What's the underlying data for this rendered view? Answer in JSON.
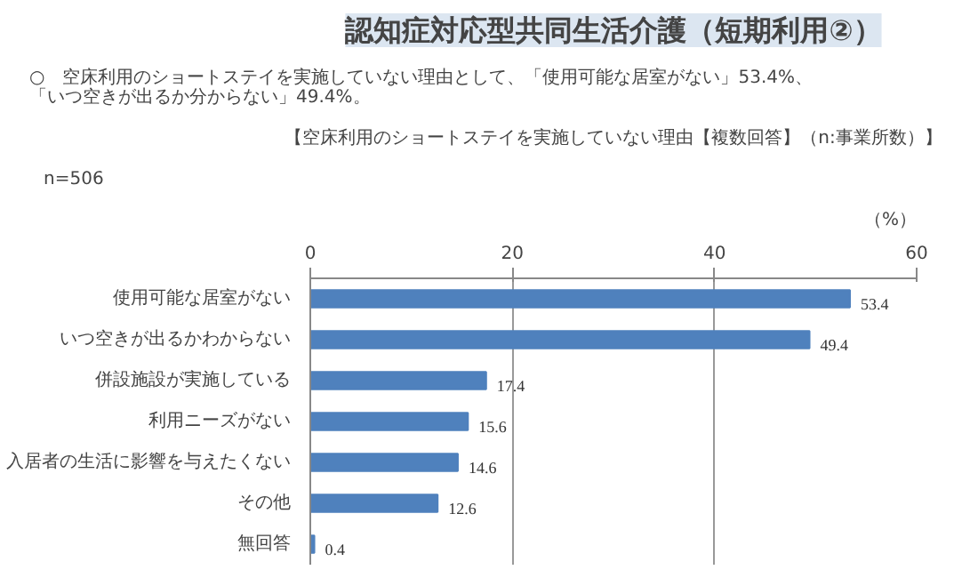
{
  "chart_data": {
    "type": "bar",
    "orientation": "horizontal",
    "title": "認知症対応型共同生活介護（短期利用②）",
    "subtitle": "○　空床利用のショートステイを実施していない理由として、「使用可能な居室がない」53.4%、「いつ空きが出るか分からない」49.4%。",
    "annotations": [
      "【空床利用のショートステイを実施していない理由【複数回答】（n:事業所数）】",
      "n=506"
    ],
    "xlabel": "（%）",
    "categories": [
      "使用可能な居室がない",
      "いつ空きが出るかわからない",
      "併設施設が実施している",
      "利用ニーズがない",
      "入居者の生活に影響を与えたくない",
      "その他",
      "無回答"
    ],
    "values": [
      53.4,
      49.4,
      17.4,
      15.6,
      14.6,
      12.6,
      0.4
    ],
    "color": "#4f81bd",
    "xlim": [
      0,
      60
    ],
    "xticks": [
      0,
      20,
      40,
      60
    ],
    "grid": "x",
    "data_labels": true
  }
}
